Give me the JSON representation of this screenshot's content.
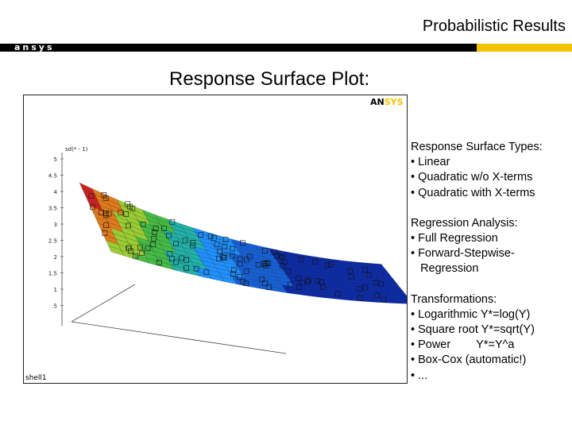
{
  "header": {
    "title": "Probabilistic Results",
    "logo": "ansys"
  },
  "slide": {
    "subtitle": "Response Surface Plot:"
  },
  "plot": {
    "logo_black": "AN",
    "logo_yellow": "SYS",
    "z_axis_label": "sd(* - 1)",
    "z_ticks": [
      "5",
      "4.5",
      "4",
      "3.5",
      "3",
      "2.5",
      "2",
      "1.5",
      "1",
      ".5"
    ],
    "footer": "shell1",
    "colors": [
      "#cc2222",
      "#e07a1a",
      "#9acd32",
      "#44bb44",
      "#20b2aa",
      "#1e90ff",
      "#1560d8",
      "#0a2aa8"
    ]
  },
  "side_panel": {
    "groups": [
      {
        "heading": "Response Surface Types:",
        "items": [
          "• Linear",
          "• Quadratic w/o X-terms",
          "• Quadratic with X-terms"
        ]
      },
      {
        "heading": "Regression Analysis:",
        "items": [
          "• Full Regression",
          "• Forward-Stepwise-",
          "   Regression"
        ]
      },
      {
        "heading": "Transformations:",
        "items": [
          "• Logarithmic Y*=log(Y)",
          "• Square root Y*=sqrt(Y)",
          "• Power        Y*=Y^a",
          "• Box-Cox (automatic!)",
          "• ..."
        ]
      }
    ]
  }
}
